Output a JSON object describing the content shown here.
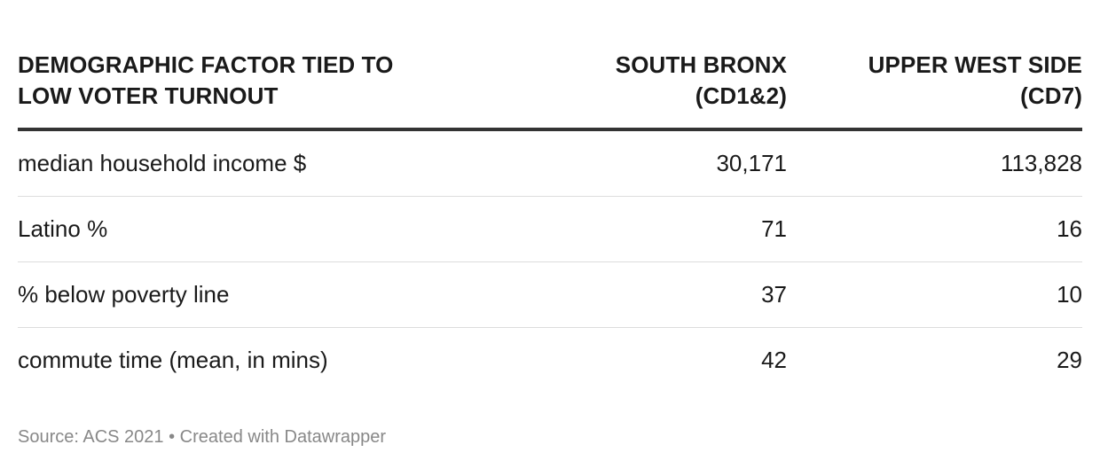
{
  "chart_data": {
    "type": "table",
    "columns": [
      "DEMOGRAPHIC FACTOR TIED TO LOW VOTER TURNOUT",
      "SOUTH BRONX (CD1&2)",
      "UPPER WEST SIDE (CD7)"
    ],
    "headers": {
      "factor": [
        "DEMOGRAPHIC FACTOR TIED TO",
        "LOW VOTER TURNOUT"
      ],
      "south_bronx": [
        "SOUTH BRONX",
        "(CD1&2)"
      ],
      "upper_west_side": [
        "UPPER WEST SIDE",
        "(CD7)"
      ]
    },
    "rows": [
      {
        "factor": "median household income $",
        "south_bronx": "30,171",
        "upper_west_side": "113,828"
      },
      {
        "factor": "Latino %",
        "south_bronx": "71",
        "upper_west_side": "16"
      },
      {
        "factor": "% below poverty line",
        "south_bronx": "37",
        "upper_west_side": "10"
      },
      {
        "factor": "commute time (mean, in mins)",
        "south_bronx": "42",
        "upper_west_side": "29"
      }
    ]
  },
  "footer": {
    "source": "Source: ACS 2021 • Created with Datawrapper"
  },
  "colors": {
    "header_rule": "#333333",
    "row_rule": "#dddddd",
    "footer_text": "#888888"
  }
}
